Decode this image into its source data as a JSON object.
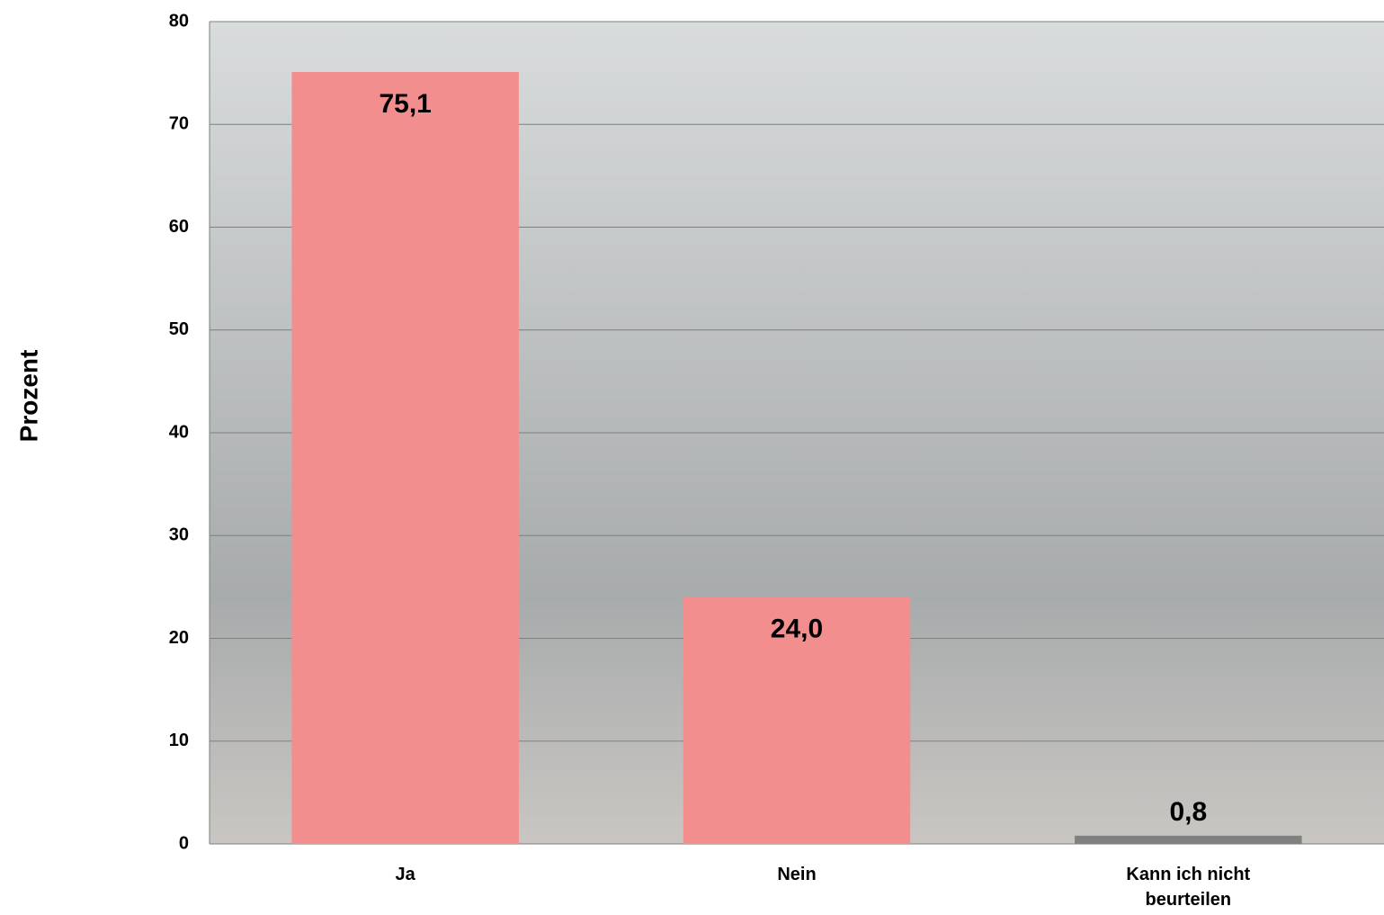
{
  "chart_data": {
    "type": "bar",
    "y_label": "Prozent",
    "categories": [
      "Ja",
      "Nein",
      "Kann ich nicht beurteilen"
    ],
    "values": [
      75.1,
      24.0,
      0.8
    ],
    "value_labels": [
      "75,1",
      "24,0",
      "0,8"
    ],
    "colors": [
      "#f28e8e",
      "#f28e8e",
      "#808080"
    ],
    "ylim": [
      0,
      80
    ],
    "yticks": [
      0,
      10,
      20,
      30,
      40,
      50,
      60,
      70,
      80
    ],
    "grid": true
  }
}
